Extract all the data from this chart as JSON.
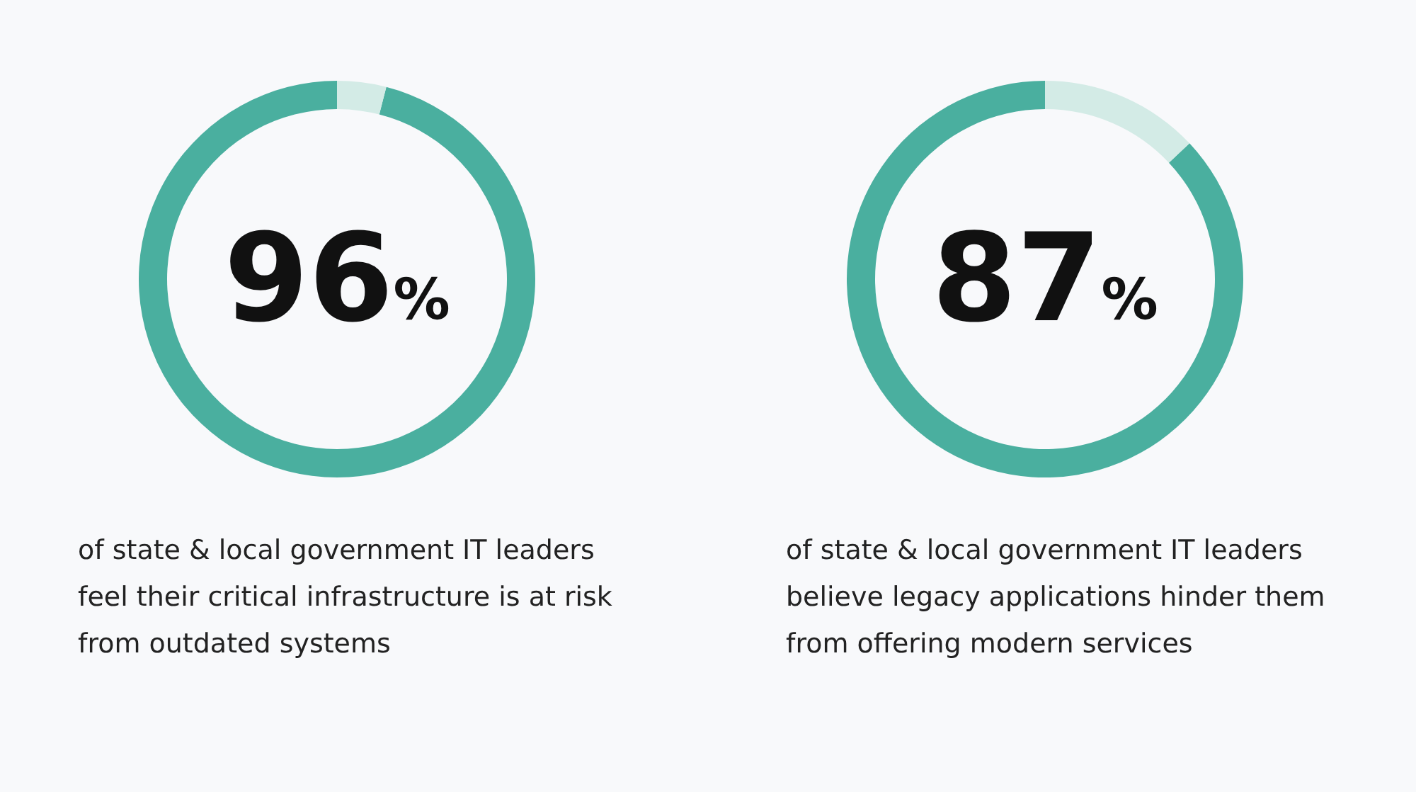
{
  "chart_data": [
    {
      "type": "donut",
      "categories": [
        null,
        null
      ],
      "values": [
        96,
        4
      ],
      "colors": [
        "#4aaf9f",
        "#d3ebe6"
      ],
      "value_labels": [
        "96%",
        null
      ],
      "annotations": [
        "of state & local government IT leaders feel their critical infrastructure is at risk from outdated systems"
      ]
    },
    {
      "type": "donut",
      "categories": [
        null,
        null
      ],
      "values": [
        87,
        13
      ],
      "colors": [
        "#4aaf9f",
        "#d3ebe6"
      ],
      "value_labels": [
        "87%",
        null
      ],
      "annotations": [
        "of state & local government IT leaders believe legacy applications hinder them from offering modern services"
      ]
    }
  ]
}
